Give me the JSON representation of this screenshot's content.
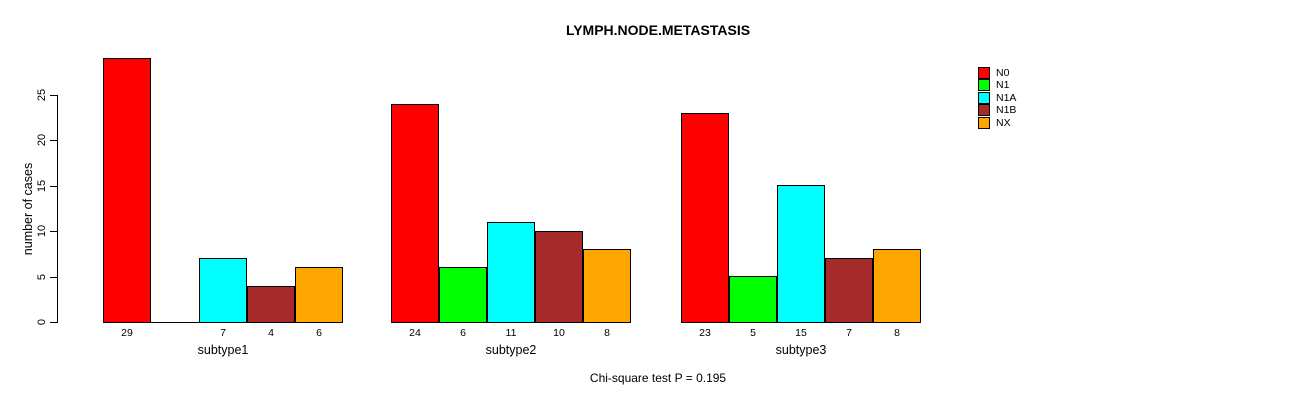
{
  "chart_data": {
    "type": "bar",
    "title": "LYMPH.NODE.METASTASIS",
    "xlabel": "",
    "ylabel": "number of cases",
    "annotation": "Chi-square test P = 0.195",
    "categories": [
      "subtype1",
      "subtype2",
      "subtype3"
    ],
    "series": [
      {
        "name": "N0",
        "color": "#FF0000",
        "values": [
          29,
          24,
          23
        ]
      },
      {
        "name": "N1",
        "color": "#00FF00",
        "values": [
          0,
          6,
          5
        ]
      },
      {
        "name": "N1A",
        "color": "#00FFFF",
        "values": [
          7,
          11,
          15
        ]
      },
      {
        "name": "N1B",
        "color": "#A52A2A",
        "values": [
          4,
          10,
          7
        ]
      },
      {
        "name": "NX",
        "color": "#FFA500",
        "values": [
          6,
          8,
          8
        ]
      }
    ],
    "yticks": [
      0,
      5,
      10,
      15,
      20,
      25
    ],
    "ylim": [
      0,
      29
    ],
    "grid": false,
    "legend_position": "right",
    "bar_value_labels": "shown under each bar; zero values have no bar and no label"
  }
}
